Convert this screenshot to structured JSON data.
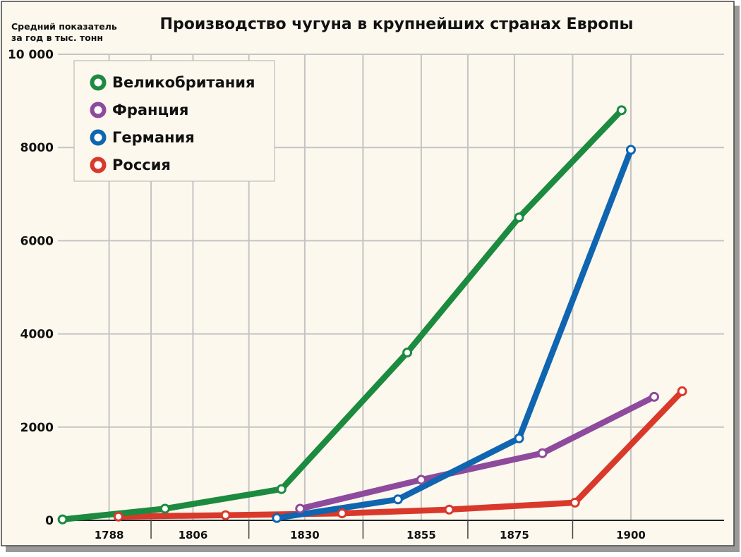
{
  "chart_data": {
    "type": "line",
    "title": "Производство чугуна в крупнейших странах Европы",
    "ylabel_lines": [
      "Средний показатель",
      "за год в тыс. тонн"
    ],
    "xlabel": "",
    "ylim": [
      0,
      10000
    ],
    "xlim": [
      1777,
      1920
    ],
    "y_ticks": [
      0,
      2000,
      4000,
      6000,
      8000,
      10000
    ],
    "y_tick_labels": [
      "0",
      "2000",
      "4000",
      "6000",
      "8000",
      "10 000"
    ],
    "x_ticks": [
      1788,
      1806,
      1830,
      1855,
      1875,
      1900
    ],
    "x_tick_labels": [
      "1788",
      "1806",
      "1830",
      "1855",
      "1875",
      "1900"
    ],
    "grid": true,
    "legend_position": "top-left",
    "series": [
      {
        "name": "Великобритания",
        "color": "#1c8a3f",
        "points": [
          [
            1778,
            20
          ],
          [
            1800,
            250
          ],
          [
            1825,
            670
          ],
          [
            1852,
            3600
          ],
          [
            1876,
            6500
          ],
          [
            1898,
            8800
          ]
        ]
      },
      {
        "name": "Франция",
        "color": "#8e4a9c",
        "points": [
          [
            1829,
            250
          ],
          [
            1855,
            870
          ],
          [
            1881,
            1440
          ],
          [
            1905,
            2650
          ]
        ]
      },
      {
        "name": "Германия",
        "color": "#0f65b0",
        "points": [
          [
            1824,
            50
          ],
          [
            1850,
            450
          ],
          [
            1876,
            1760
          ],
          [
            1900,
            7950
          ]
        ]
      },
      {
        "name": "Россия",
        "color": "#d9392b",
        "points": [
          [
            1790,
            80
          ],
          [
            1813,
            110
          ],
          [
            1838,
            150
          ],
          [
            1861,
            230
          ],
          [
            1888,
            380
          ],
          [
            1911,
            2770
          ]
        ]
      }
    ]
  }
}
